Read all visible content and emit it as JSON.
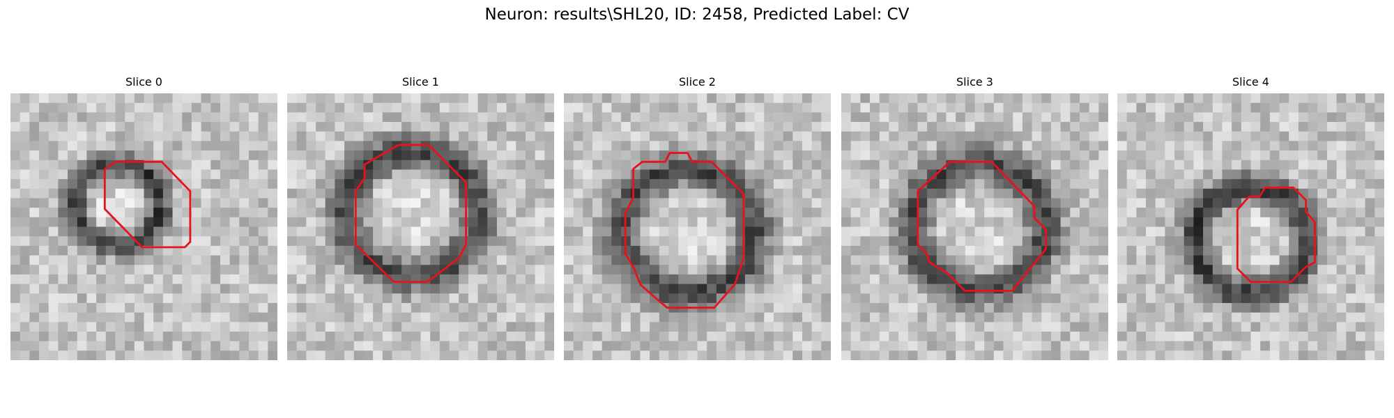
{
  "header": {
    "title": "Neuron: results\\SHL20, ID: 2458, Predicted Label: CV"
  },
  "panels": [
    {
      "title": "Slice 0"
    },
    {
      "title": "Slice 1"
    },
    {
      "title": "Slice 2"
    },
    {
      "title": "Slice 3"
    },
    {
      "title": "Slice 4"
    }
  ]
}
